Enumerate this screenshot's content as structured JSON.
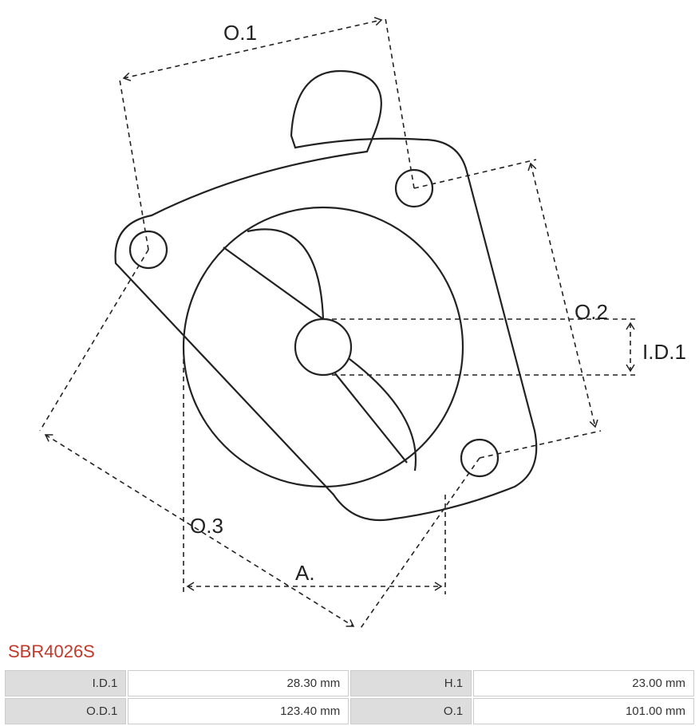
{
  "part_number": "SBR4026S",
  "diagram": {
    "stroke_color": "#222222",
    "stroke_width": 2,
    "dash_pattern": "6,5",
    "label_fontsize": 26,
    "labels": {
      "o1": "O.1",
      "o2": "O.2",
      "o3": "O.3",
      "id1": "I.D.1",
      "a": "A."
    }
  },
  "specs": {
    "rows": [
      {
        "k1": "I.D.1",
        "v1": "28.30 mm",
        "k2": "H.1",
        "v2": "23.00 mm"
      },
      {
        "k1": "O.D.1",
        "v1": "123.40 mm",
        "k2": "O.1",
        "v2": "101.00 mm"
      }
    ]
  },
  "colors": {
    "part_number": "#c0392b",
    "border": "#cccccc",
    "label_bg": "#dddddd",
    "value_bg": "#ffffff",
    "text": "#333333"
  }
}
